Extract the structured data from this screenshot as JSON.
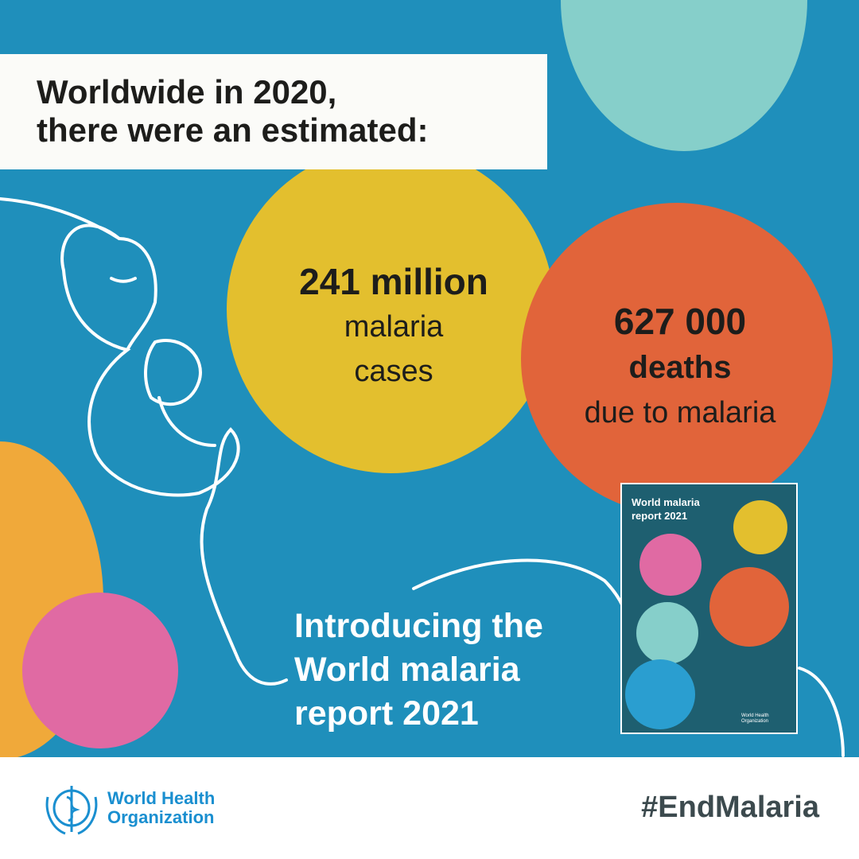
{
  "header": {
    "line1": "Worldwide in 2020,",
    "line2": "there were an estimated:"
  },
  "stats": [
    {
      "value": "241 million",
      "label1": "malaria",
      "label2": "cases"
    },
    {
      "value": "627 000",
      "label1": "deaths",
      "label2": "due to malaria"
    }
  ],
  "intro": {
    "line1": "Introducing the",
    "line2": "World malaria",
    "line3": "report 2021"
  },
  "report_cover": {
    "title_line1": "World malaria",
    "title_line2": "report 2021",
    "publisher_line1": "World Health",
    "publisher_line2": "Organization"
  },
  "footer": {
    "org_line1": "World Health",
    "org_line2": "Organization",
    "hashtag": "#EndMalaria"
  },
  "colors": {
    "background": "#1f8fbb",
    "yellow": "#e3bf2e",
    "orange": "#e1643a",
    "teal": "#7fcbc8",
    "pink": "#e06aa3",
    "who_blue": "#1a8fd0"
  }
}
